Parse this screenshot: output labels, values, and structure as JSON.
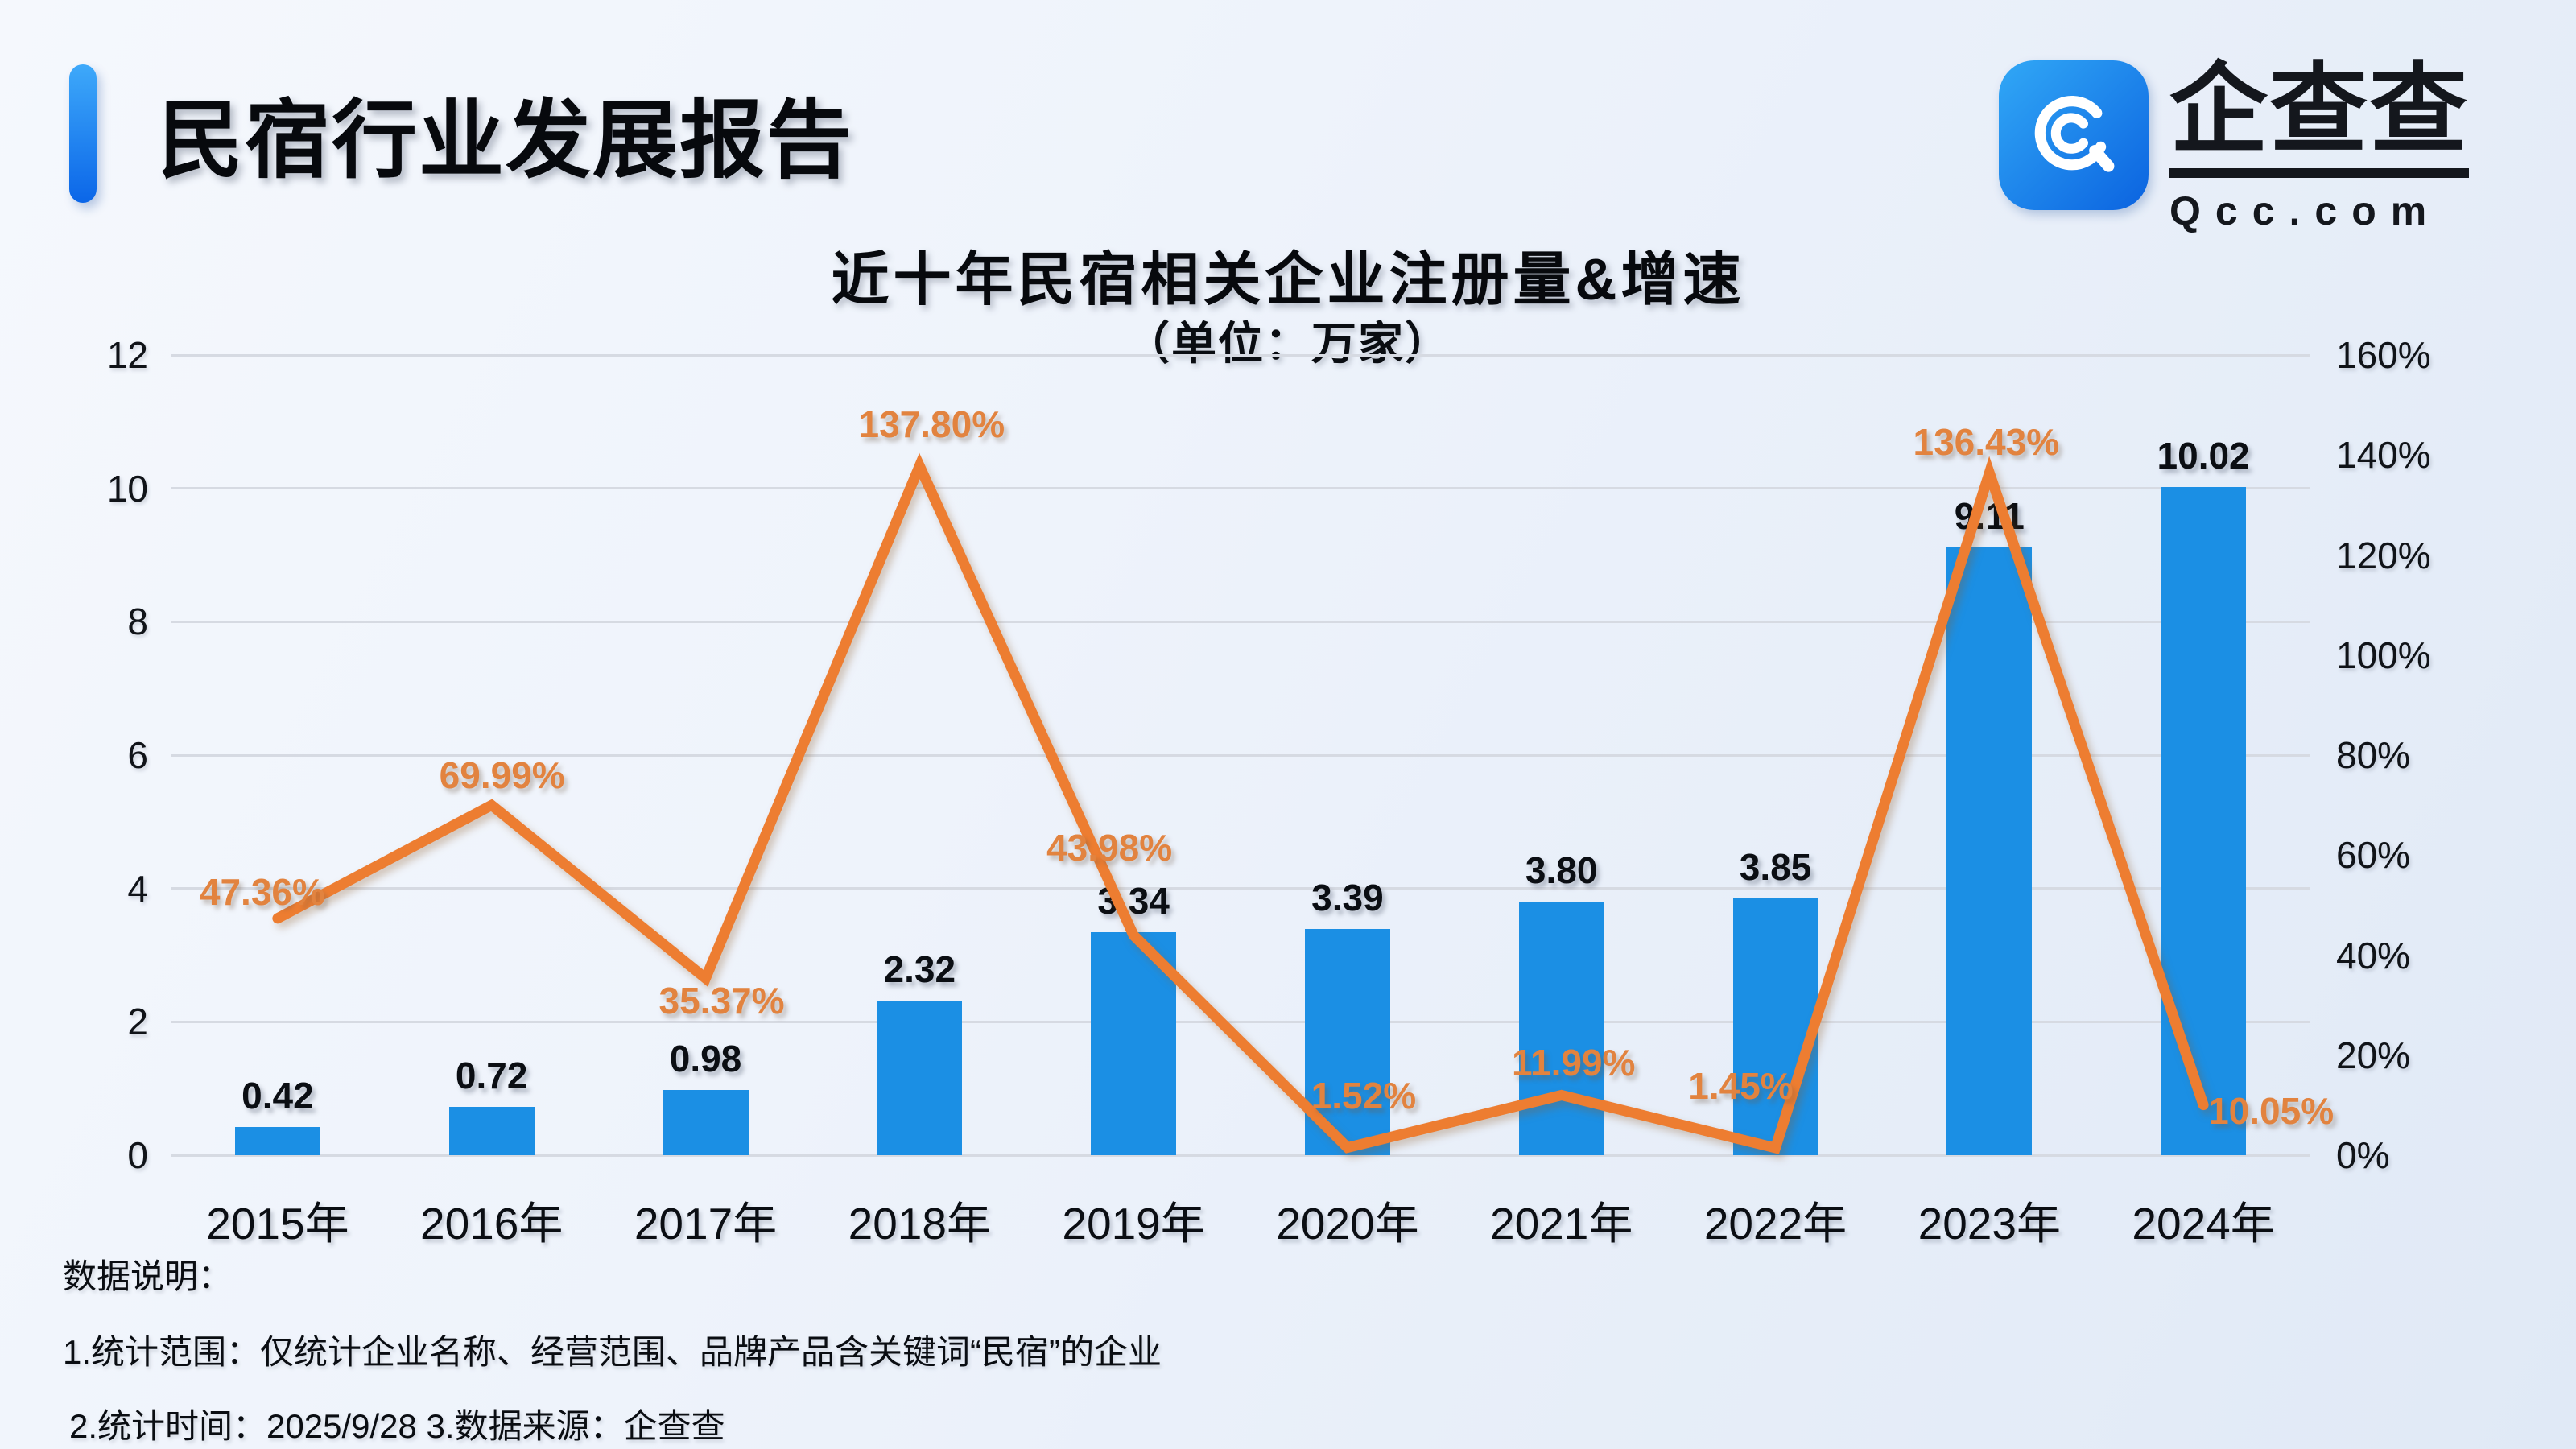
{
  "header": {
    "title": "民宿行业发展报告",
    "logo": {
      "brand": "企查查",
      "domain": "Qcc.com"
    }
  },
  "chart": {
    "title": "近十年民宿相关企业注册量&增速",
    "subtitle": "（单位：万家）"
  },
  "chart_data": {
    "type": "bar+line",
    "title": "近十年民宿相关企业注册量&增速",
    "subtitle_unit": "万家",
    "categories": [
      "2015年",
      "2016年",
      "2017年",
      "2018年",
      "2019年",
      "2020年",
      "2021年",
      "2022年",
      "2023年",
      "2024年"
    ],
    "series": [
      {
        "name": "注册量",
        "type": "bar",
        "unit": "万家",
        "axis": "left",
        "color": "#1B8FE4",
        "values": [
          0.42,
          0.72,
          0.98,
          2.32,
          3.34,
          3.39,
          3.8,
          3.85,
          9.11,
          10.02
        ],
        "labels": [
          "0.42",
          "0.72",
          "0.98",
          "2.32",
          "3.34",
          "3.39",
          "3.80",
          "3.85",
          "9.11",
          "10.02"
        ]
      },
      {
        "name": "增速",
        "type": "line",
        "unit": "%",
        "axis": "right",
        "color": "#ED7D31",
        "values": [
          47.36,
          69.99,
          35.37,
          137.8,
          43.98,
          1.52,
          11.99,
          1.45,
          136.43,
          10.05
        ],
        "labels": [
          "47.36%",
          "69.99%",
          "35.37%",
          "137.80%",
          "43.98%",
          "1.52%",
          "11.99%",
          "1.45%",
          "136.43%",
          "10.05%"
        ]
      }
    ],
    "left_axis": {
      "min": 0,
      "max": 12,
      "ticks": [
        "0",
        "2",
        "4",
        "6",
        "8",
        "10",
        "12"
      ]
    },
    "right_axis": {
      "min": 0,
      "max": 160,
      "ticks": [
        "0%",
        "20%",
        "40%",
        "60%",
        "80%",
        "100%",
        "120%",
        "140%",
        "160%"
      ]
    },
    "grid": true,
    "legend": "none"
  },
  "notes": {
    "heading": "数据说明：",
    "line1": "1.统计范围：仅统计企业名称、经营范围、品牌产品含关键词“民宿”的企业",
    "line2": "2.统计时间：2025/9/28  3.数据来源：企查查"
  },
  "colors": {
    "bar": "#1B8FE4",
    "line": "#ED7D31",
    "pct_label": "#E2833F",
    "accent": "#1479F2",
    "gridline": "#D6DAE2"
  }
}
